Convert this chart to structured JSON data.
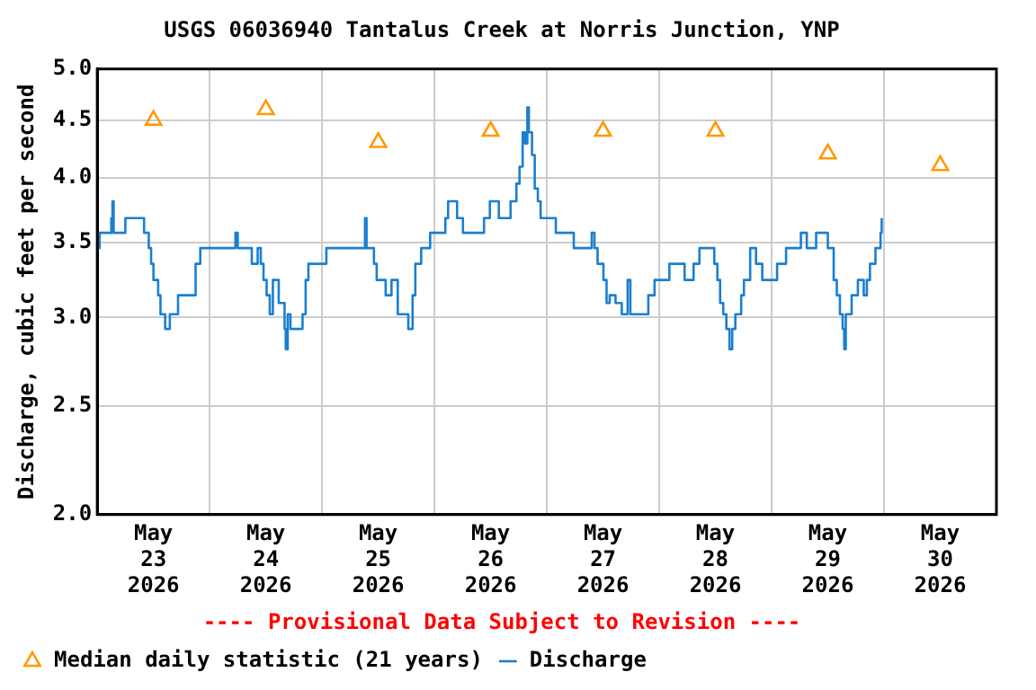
{
  "chart_data": {
    "type": "line",
    "title": "USGS 06036940 Tantalus Creek at Norris Junction, YNP",
    "ylabel": "Discharge, cubic feet per second",
    "annotations": [
      "---- Provisional Data Subject to Revision ----"
    ],
    "xlim": [
      "2026-05-23T00:00",
      "2026-05-31T00:00"
    ],
    "xticks": [
      {
        "value": "2026-05-23T12:00",
        "label": "May\n23\n2026"
      },
      {
        "value": "2026-05-24T12:00",
        "label": "May\n24\n2026"
      },
      {
        "value": "2026-05-25T12:00",
        "label": "May\n25\n2026"
      },
      {
        "value": "2026-05-26T12:00",
        "label": "May\n26\n2026"
      },
      {
        "value": "2026-05-27T12:00",
        "label": "May\n27\n2026"
      },
      {
        "value": "2026-05-28T12:00",
        "label": "May\n28\n2026"
      },
      {
        "value": "2026-05-29T12:00",
        "label": "May\n29\n2026"
      },
      {
        "value": "2026-05-30T12:00",
        "label": "May\n30\n2026"
      },
      {
        "value": "2026-05-24T00:00",
        "label": null
      },
      {
        "value": "2026-05-25T00:00",
        "label": null
      },
      {
        "value": "2026-05-26T00:00",
        "label": null
      },
      {
        "value": "2026-05-27T00:00",
        "label": null
      },
      {
        "value": "2026-05-28T00:00",
        "label": null
      },
      {
        "value": "2026-05-29T00:00",
        "label": null
      },
      {
        "value": "2026-05-30T00:00",
        "label": null
      }
    ],
    "ylim": [
      2,
      5
    ],
    "yticks": [
      {
        "value": 2,
        "label": "2.0"
      },
      {
        "value": 2.5,
        "label": "2.5"
      },
      {
        "value": 3,
        "label": "3.0"
      },
      {
        "value": 3.5,
        "label": "3.5"
      },
      {
        "value": 4,
        "label": "4.0"
      },
      {
        "value": 4.5,
        "label": "4.5"
      },
      {
        "value": 5,
        "label": "5.0"
      }
    ],
    "log": "y",
    "grid": true,
    "legend": "bottom left",
    "series": [
      {
        "name": "Median daily statistic (21 years)",
        "type": "scatter",
        "marker": "triangle",
        "color": "#ff9900",
        "x": [
          "2026-05-23T12:00",
          "2026-05-24T12:00",
          "2026-05-25T12:00",
          "2026-05-26T12:00",
          "2026-05-27T12:00",
          "2026-05-28T12:00",
          "2026-05-29T12:00",
          "2026-05-30T12:00"
        ],
        "values": [
          4.5,
          4.6,
          4.3,
          4.4,
          4.4,
          4.4,
          4.2,
          4.1
        ]
      },
      {
        "name": "Discharge",
        "type": "step",
        "color": "#1a7fd0",
        "line_style": "solid",
        "marker": "none",
        "x": [
          "2026-05-23T00:00",
          "2026-05-23T00:30",
          "2026-05-23T03:00",
          "2026-05-23T03:15",
          "2026-05-23T03:30",
          "2026-05-23T05:30",
          "2026-05-23T06:00",
          "2026-05-23T09:30",
          "2026-05-23T10:00",
          "2026-05-23T11:00",
          "2026-05-23T11:30",
          "2026-05-23T12:00",
          "2026-05-23T13:00",
          "2026-05-23T13:30",
          "2026-05-23T14:30",
          "2026-05-23T15:30",
          "2026-05-23T17:00",
          "2026-05-23T17:15",
          "2026-05-23T19:00",
          "2026-05-23T21:00",
          "2026-05-23T22:00",
          "2026-05-24T05:30",
          "2026-05-24T06:00",
          "2026-05-24T07:45",
          "2026-05-24T09:00",
          "2026-05-24T10:15",
          "2026-05-24T10:55",
          "2026-05-24T11:30",
          "2026-05-24T12:10",
          "2026-05-24T12:50",
          "2026-05-24T13:30",
          "2026-05-24T14:45",
          "2026-05-24T16:00",
          "2026-05-24T16:15",
          "2026-05-24T16:40",
          "2026-05-24T17:15",
          "2026-05-24T19:50",
          "2026-05-24T20:30",
          "2026-05-24T21:05",
          "2026-05-25T00:55",
          "2026-05-25T09:10",
          "2026-05-25T09:30",
          "2026-05-25T10:00",
          "2026-05-25T11:05",
          "2026-05-25T11:40",
          "2026-05-25T13:35",
          "2026-05-25T14:50",
          "2026-05-25T16:10",
          "2026-05-25T18:25",
          "2026-05-25T19:20",
          "2026-05-25T19:55",
          "2026-05-25T21:10",
          "2026-05-25T23:05",
          "2026-05-26T02:20",
          "2026-05-26T02:55",
          "2026-05-26T04:50",
          "2026-05-26T06:05",
          "2026-05-26T10:35",
          "2026-05-26T11:50",
          "2026-05-26T13:45",
          "2026-05-26T16:15",
          "2026-05-26T17:30",
          "2026-05-26T18:10",
          "2026-05-26T18:50",
          "2026-05-26T19:20",
          "2026-05-26T19:50",
          "2026-05-26T20:10",
          "2026-05-26T20:50",
          "2026-05-26T21:25",
          "2026-05-26T22:05",
          "2026-05-26T22:40",
          "2026-05-27T01:55",
          "2026-05-27T05:45",
          "2026-05-27T09:35",
          "2026-05-27T10:10",
          "2026-05-27T10:50",
          "2026-05-27T12:05",
          "2026-05-27T12:45",
          "2026-05-27T13:25",
          "2026-05-27T14:40",
          "2026-05-27T16:00",
          "2026-05-27T17:15",
          "2026-05-27T17:50",
          "2026-05-27T21:40",
          "2026-05-27T23:00",
          "2026-05-28T02:10",
          "2026-05-28T05:25",
          "2026-05-28T07:20",
          "2026-05-28T08:35",
          "2026-05-28T11:45",
          "2026-05-28T12:25",
          "2026-05-28T13:00",
          "2026-05-28T13:40",
          "2026-05-28T14:20",
          "2026-05-28T15:00",
          "2026-05-28T15:35",
          "2026-05-28T16:15",
          "2026-05-28T17:30",
          "2026-05-28T18:05",
          "2026-05-28T19:25",
          "2026-05-28T20:40",
          "2026-05-28T22:00",
          "2026-05-29T01:10",
          "2026-05-29T03:05",
          "2026-05-29T06:15",
          "2026-05-29T07:30",
          "2026-05-29T09:30",
          "2026-05-29T12:00",
          "2026-05-29T13:15",
          "2026-05-29T13:55",
          "2026-05-29T14:35",
          "2026-05-29T15:10",
          "2026-05-29T15:30",
          "2026-05-29T15:50",
          "2026-05-29T17:05",
          "2026-05-29T18:25",
          "2026-05-29T19:40",
          "2026-05-29T20:20",
          "2026-05-29T21:00",
          "2026-05-29T22:10",
          "2026-05-29T23:15",
          "2026-05-29T23:30"
        ],
        "values": [
          3.46,
          3.57,
          3.68,
          3.81,
          3.57,
          3.57,
          3.68,
          3.68,
          3.57,
          3.46,
          3.35,
          3.24,
          3.14,
          3.02,
          2.93,
          3.02,
          3.02,
          3.14,
          3.14,
          3.35,
          3.46,
          3.57,
          3.46,
          3.46,
          3.35,
          3.46,
          3.35,
          3.24,
          3.14,
          3.02,
          3.24,
          3.09,
          2.93,
          2.81,
          3.02,
          2.93,
          3.02,
          3.24,
          3.35,
          3.46,
          3.68,
          3.46,
          3.46,
          3.35,
          3.24,
          3.14,
          3.24,
          3.02,
          2.93,
          3.14,
          3.35,
          3.46,
          3.57,
          3.68,
          3.81,
          3.68,
          3.57,
          3.68,
          3.81,
          3.68,
          3.81,
          3.95,
          4.09,
          4.39,
          4.29,
          4.62,
          4.39,
          4.19,
          3.91,
          3.81,
          3.68,
          3.57,
          3.46,
          3.57,
          3.46,
          3.35,
          3.24,
          3.09,
          3.14,
          3.09,
          3.02,
          3.24,
          3.02,
          3.14,
          3.24,
          3.35,
          3.24,
          3.35,
          3.46,
          3.35,
          3.24,
          3.09,
          3.02,
          2.93,
          2.81,
          2.93,
          3.02,
          3.14,
          3.24,
          3.46,
          3.35,
          3.24,
          3.35,
          3.46,
          3.57,
          3.46,
          3.57,
          3.46,
          3.24,
          3.14,
          3.02,
          2.93,
          2.81,
          3.02,
          3.14,
          3.24,
          3.14,
          3.24,
          3.35,
          3.46,
          3.57,
          3.68
        ]
      }
    ]
  }
}
